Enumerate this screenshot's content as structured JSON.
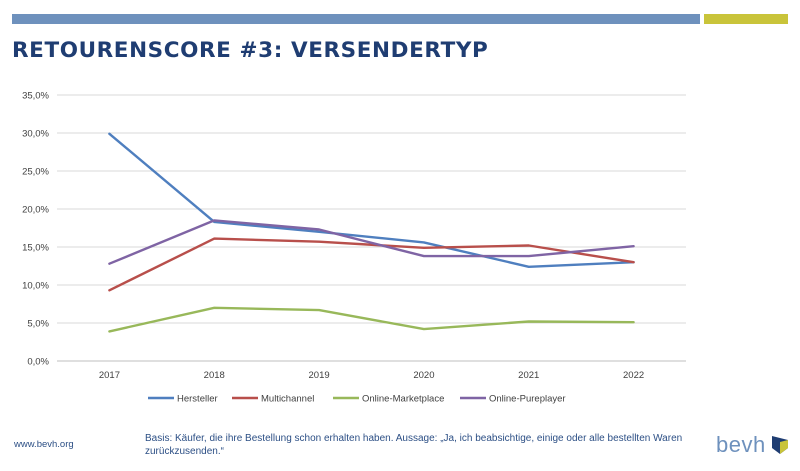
{
  "header": {
    "title": "RETOURENSCORE #3: VERSENDERTYP",
    "bar_colors": {
      "primary": "#6e91bd",
      "accent": "#c9c43a"
    }
  },
  "chart_data": {
    "type": "line",
    "x": [
      "2017",
      "2018",
      "2019",
      "2020",
      "2021",
      "2022"
    ],
    "ylim": [
      0,
      35
    ],
    "yticks": [
      "0,0%",
      "5,0%",
      "10,0%",
      "15,0%",
      "20,0%",
      "25,0%",
      "30,0%",
      "35,0%"
    ],
    "grid": true,
    "legend_position": "bottom",
    "series": [
      {
        "name": "Hersteller",
        "color": "#4f7fbf",
        "values": [
          29.9,
          18.3,
          17.0,
          15.6,
          12.4,
          13.0
        ]
      },
      {
        "name": "Multichannel",
        "color": "#b84f4b",
        "values": [
          9.3,
          16.1,
          15.7,
          14.9,
          15.2,
          13.0
        ]
      },
      {
        "name": "Online-Marketplace",
        "color": "#98b85a",
        "values": [
          3.9,
          7.0,
          6.7,
          4.2,
          5.2,
          5.1
        ]
      },
      {
        "name": "Online-Pureplayer",
        "color": "#7f64a4",
        "values": [
          12.8,
          18.5,
          17.3,
          13.8,
          13.8,
          15.1
        ]
      }
    ]
  },
  "footer": {
    "url": "www.bevh.org",
    "note": "Basis: Käufer, die ihre Bestellung schon erhalten haben. Aussage: „Ja, ich beabsichtige, einige oder alle bestellten Waren zurückzusenden.“",
    "logo_text": "bevh"
  }
}
